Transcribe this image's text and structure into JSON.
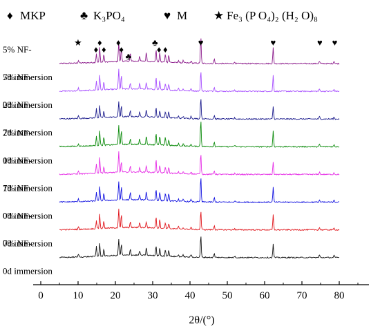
{
  "chart_data": {
    "type": "line",
    "xlabel": "2θ/(°)",
    "xlim": [
      0,
      85
    ],
    "xticks": [
      0,
      10,
      20,
      30,
      40,
      50,
      60,
      70,
      80
    ],
    "x_range": [
      5,
      80
    ],
    "grid": false,
    "legend_position": "top",
    "legend": [
      {
        "symbol": "♦",
        "text": "MKP"
      },
      {
        "symbol": "♣",
        "text": "K₃PO₄"
      },
      {
        "symbol": "♥",
        "text": "M"
      },
      {
        "symbol": "★",
        "text": "Fe₃ (P O₄)₂ (H₂ O)₈"
      }
    ],
    "series": [
      {
        "label_lines": [
          "5% NF-",
          "7d immersion"
        ],
        "color": "#8b1a8b"
      },
      {
        "label_lines": [
          "5% NF-",
          "0d immersion"
        ],
        "color": "#a64dff"
      },
      {
        "label_lines": [
          "2% NF-",
          "7d immersion"
        ],
        "color": "#1a1a8c"
      },
      {
        "label_lines": [
          "2% NF-",
          "0d immersion"
        ],
        "color": "#0a8a0a"
      },
      {
        "label_lines": [
          "1% NF-",
          "7d immersion"
        ],
        "color": "#e62ee6"
      },
      {
        "label_lines": [
          "1% NF-",
          "0d immersion"
        ],
        "color": "#1010e0"
      },
      {
        "label_lines": [
          "0% NF-",
          "7d immersion"
        ],
        "color": "#e0141a"
      },
      {
        "label_lines": [
          "0% NF-",
          "0d immersion"
        ],
        "color": "#111111"
      }
    ],
    "peaks": [
      {
        "two_theta": 10.1,
        "intensity": 0.12
      },
      {
        "two_theta": 14.9,
        "intensity": 0.4
      },
      {
        "two_theta": 15.8,
        "intensity": 0.62
      },
      {
        "two_theta": 16.9,
        "intensity": 0.32
      },
      {
        "two_theta": 20.9,
        "intensity": 0.82
      },
      {
        "two_theta": 21.6,
        "intensity": 0.55
      },
      {
        "two_theta": 24.0,
        "intensity": 0.28
      },
      {
        "two_theta": 26.5,
        "intensity": 0.22
      },
      {
        "two_theta": 28.3,
        "intensity": 0.33
      },
      {
        "two_theta": 30.9,
        "intensity": 0.5
      },
      {
        "two_theta": 31.9,
        "intensity": 0.36
      },
      {
        "two_theta": 33.4,
        "intensity": 0.3
      },
      {
        "two_theta": 34.3,
        "intensity": 0.26
      },
      {
        "two_theta": 36.9,
        "intensity": 0.1
      },
      {
        "two_theta": 38.2,
        "intensity": 0.09
      },
      {
        "two_theta": 40.3,
        "intensity": 0.1
      },
      {
        "two_theta": 42.9,
        "intensity": 1.0
      },
      {
        "two_theta": 46.5,
        "intensity": 0.18
      },
      {
        "two_theta": 52.0,
        "intensity": 0.06
      },
      {
        "two_theta": 62.3,
        "intensity": 0.62
      },
      {
        "two_theta": 74.7,
        "intensity": 0.1
      },
      {
        "two_theta": 78.6,
        "intensity": 0.09
      }
    ],
    "phase_markers": [
      {
        "symbol": "★",
        "two_theta": 10.0
      },
      {
        "symbol": "♦",
        "two_theta": 14.8
      },
      {
        "symbol": "♦",
        "two_theta": 15.8
      },
      {
        "symbol": "♦",
        "two_theta": 16.9
      },
      {
        "symbol": "♦",
        "two_theta": 20.8
      },
      {
        "symbol": "♦",
        "two_theta": 21.6
      },
      {
        "symbol": "♣",
        "two_theta": 23.5
      },
      {
        "symbol": "♣",
        "two_theta": 30.6
      },
      {
        "symbol": "♦",
        "two_theta": 31.7
      },
      {
        "symbol": "♦",
        "two_theta": 33.4
      },
      {
        "symbol": "♥",
        "two_theta": 42.9
      },
      {
        "symbol": "♥",
        "two_theta": 62.3
      },
      {
        "symbol": "♥",
        "two_theta": 74.8
      },
      {
        "symbol": "♥",
        "two_theta": 78.8
      }
    ]
  }
}
